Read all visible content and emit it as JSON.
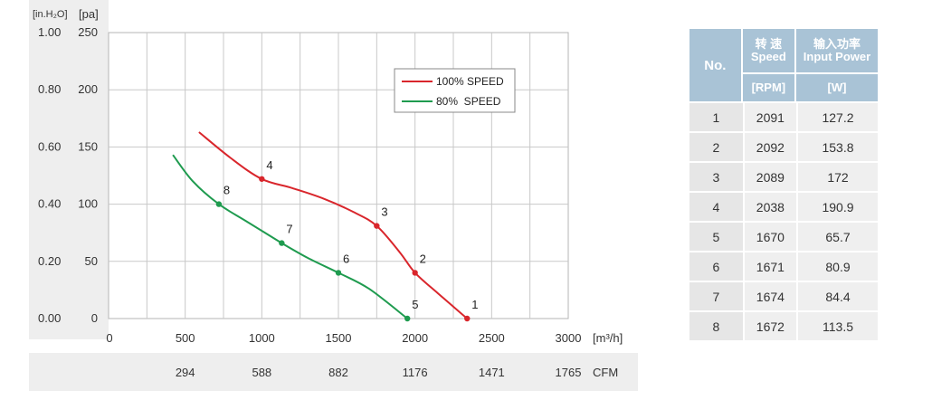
{
  "chart_data": {
    "type": "line",
    "x_axis": {
      "ticks": [
        "0",
        "500",
        "1000",
        "1500",
        "2000",
        "2500",
        "3000"
      ],
      "tick_values": [
        0,
        500,
        1000,
        1500,
        2000,
        2500,
        3000
      ],
      "unit_label": "[m³/h]",
      "range": [
        0,
        3000
      ]
    },
    "x_axis_cfm": {
      "ticks": [
        "294",
        "588",
        "882",
        "1176",
        "1471",
        "1765"
      ],
      "tick_values": [
        500,
        1000,
        1500,
        2000,
        2500,
        3000
      ],
      "unit_label": "CFM"
    },
    "y_axis_pa": {
      "ticks": [
        "250",
        "200",
        "150",
        "100",
        "50",
        "0"
      ],
      "tick_values": [
        250,
        200,
        150,
        100,
        50,
        0
      ],
      "unit_label": "[pa]",
      "range": [
        0,
        250
      ]
    },
    "y_axis_inh2o": {
      "ticks": [
        "1.00",
        "0.80",
        "0.60",
        "0.40",
        "0.20",
        "0.00"
      ],
      "tick_values": [
        250,
        200,
        150,
        100,
        50,
        0
      ],
      "unit_label": "[in.H₂O]"
    },
    "grid": true,
    "legend_position": "top-right",
    "series": [
      {
        "name": "100% SPEED",
        "color": "#d9262c",
        "curve": [
          [
            590,
            163
          ],
          [
            800,
            140
          ],
          [
            1000,
            122
          ],
          [
            1200,
            114
          ],
          [
            1400,
            105
          ],
          [
            1600,
            93
          ],
          [
            1750,
            81
          ],
          [
            1900,
            58
          ],
          [
            2000,
            40
          ],
          [
            2150,
            22
          ],
          [
            2340,
            0
          ]
        ],
        "points": [
          {
            "label": "1",
            "x": 2340,
            "y": 0
          },
          {
            "label": "2",
            "x": 2000,
            "y": 40
          },
          {
            "label": "3",
            "x": 1750,
            "y": 81
          },
          {
            "label": "4",
            "x": 1000,
            "y": 122
          }
        ]
      },
      {
        "name": "80%  SPEED",
        "color": "#1f9b4f",
        "curve": [
          [
            420,
            143
          ],
          [
            550,
            120
          ],
          [
            720,
            100
          ],
          [
            900,
            85
          ],
          [
            1130,
            66
          ],
          [
            1300,
            53
          ],
          [
            1500,
            40
          ],
          [
            1700,
            26
          ],
          [
            1950,
            0
          ]
        ],
        "points": [
          {
            "label": "5",
            "x": 1950,
            "y": 0
          },
          {
            "label": "6",
            "x": 1500,
            "y": 40
          },
          {
            "label": "7",
            "x": 1130,
            "y": 66
          },
          {
            "label": "8",
            "x": 720,
            "y": 100
          }
        ]
      }
    ]
  },
  "table": {
    "headers": {
      "no": "No.",
      "speed_cn": "转 速",
      "speed_en": "Speed",
      "power_cn": "输入功率",
      "power_en": "Input Power",
      "speed_unit": "[RPM]",
      "power_unit": "[W]"
    },
    "rows": [
      {
        "no": "1",
        "rpm": "2091",
        "w": "127.2"
      },
      {
        "no": "2",
        "rpm": "2092",
        "w": "153.8"
      },
      {
        "no": "3",
        "rpm": "2089",
        "w": "172"
      },
      {
        "no": "4",
        "rpm": "2038",
        "w": "190.9"
      },
      {
        "no": "5",
        "rpm": "1670",
        "w": "65.7"
      },
      {
        "no": "6",
        "rpm": "1671",
        "w": "80.9"
      },
      {
        "no": "7",
        "rpm": "1674",
        "w": "84.4"
      },
      {
        "no": "8",
        "rpm": "1672",
        "w": "113.5"
      }
    ]
  }
}
